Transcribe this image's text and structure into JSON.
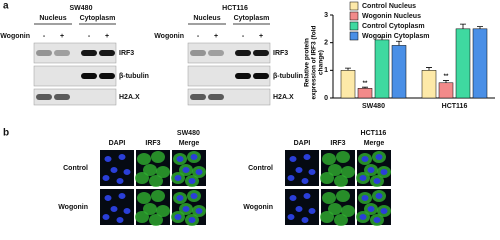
{
  "panel_a": {
    "label": "a",
    "blots": [
      {
        "title": "SW480",
        "headers": [
          "Nucleus",
          "Cytoplasm"
        ],
        "treatment": "Wogonin",
        "signs": [
          "-",
          "+",
          "-",
          "+"
        ],
        "rows": [
          "IRF3",
          "β-tubulin",
          "H2A.X"
        ]
      },
      {
        "title": "HCT116",
        "headers": [
          "Nucleus",
          "Cytoplasm"
        ],
        "treatment": "Wogonin",
        "signs": [
          "-",
          "+",
          "-",
          "+"
        ],
        "rows": [
          "IRF3",
          "β-tubulin",
          "H2A.X"
        ]
      }
    ]
  },
  "chart_data": {
    "type": "bar",
    "y_label": "Relative protein expression of IRF3 (fold change)",
    "categories": [
      "SW480",
      "HCT116"
    ],
    "series": [
      {
        "name": "Control Nucleus",
        "color": "#fde9a8",
        "values": [
          1.0,
          1.0
        ],
        "errors": [
          0.08,
          0.1
        ]
      },
      {
        "name": "Wogonin Nucleus",
        "color": "#f28a8a",
        "values": [
          0.35,
          0.55
        ],
        "errors": [
          0.04,
          0.08
        ],
        "labels": [
          "**",
          "**"
        ]
      },
      {
        "name": "Control Cytoplasm",
        "color": "#3fd9a0",
        "values": [
          2.1,
          2.5
        ],
        "errors": [
          0.1,
          0.17
        ]
      },
      {
        "name": "Wogonin Cytoplasm",
        "color": "#4a8fe6",
        "values": [
          1.9,
          2.5
        ],
        "errors": [
          0.15,
          0.08
        ]
      }
    ],
    "ylim": [
      0,
      3
    ],
    "yticks": [
      0,
      1,
      2,
      3
    ],
    "legend": "top"
  },
  "panel_b": {
    "label": "b",
    "groups": [
      {
        "title": "SW480",
        "columns": [
          "DAPI",
          "IRF3",
          "Merge"
        ],
        "rows": [
          "Control",
          "Wogonin"
        ]
      },
      {
        "title": "HCT116",
        "columns": [
          "DAPI",
          "IRF3",
          "Merge"
        ],
        "rows": [
          "Control",
          "Wogonin"
        ]
      }
    ]
  }
}
